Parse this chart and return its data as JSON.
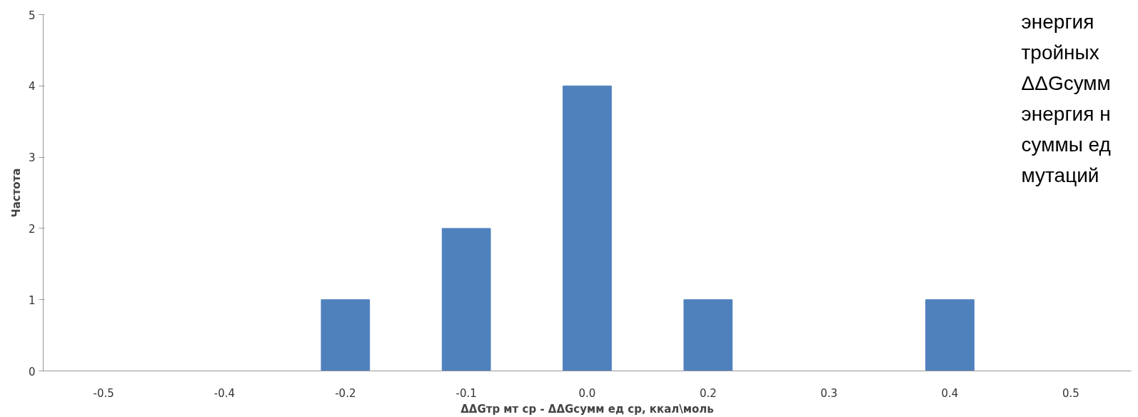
{
  "chart_data": {
    "type": "bar",
    "xlabel": "ΔΔGтр мт ср - ΔΔGсумм ед ср, ккал\\моль",
    "ylabel": "Частота",
    "categories": [
      "-0.5",
      "-0.4",
      "-0.2",
      "-0.1",
      "0.0",
      "0.2",
      "0.3",
      "0.4",
      "0.5"
    ],
    "values": [
      0,
      0,
      1,
      2,
      4,
      1,
      0,
      1,
      0
    ],
    "color": "#4f81bd",
    "ylim": [
      0,
      5
    ],
    "yticks": [
      0,
      1,
      2,
      3,
      4,
      5
    ],
    "grid": false,
    "annotations": [
      "энергия",
      "тройных",
      "ΔΔGсумм",
      "энергия н",
      "суммы ед",
      "мутаций"
    ]
  }
}
